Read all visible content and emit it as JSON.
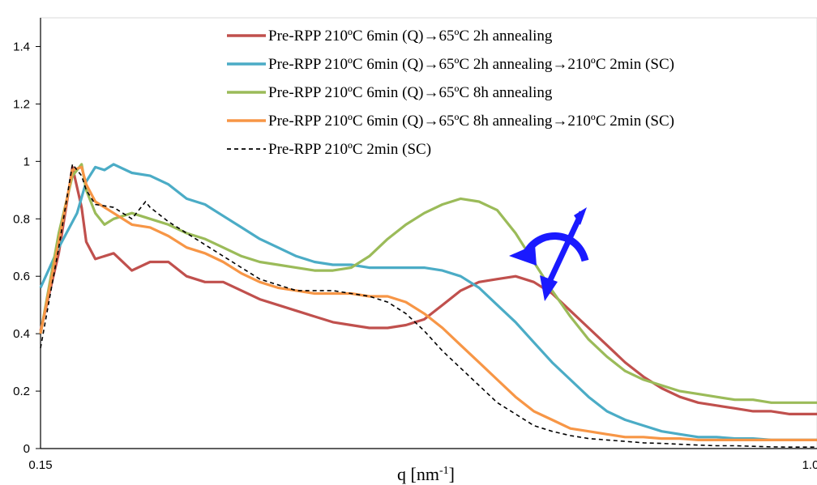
{
  "chart_data": {
    "type": "line",
    "xlabel_main": "q [nm",
    "xlabel_sup": "-1",
    "xlabel_end": "]",
    "xlim": [
      0.15,
      1.0
    ],
    "ylim": [
      0,
      1.5
    ],
    "x_ticks": [
      "0.15",
      "1.0"
    ],
    "y_ticks": [
      {
        "value": 0,
        "label": "0"
      },
      {
        "value": 0.2,
        "label": "0.2"
      },
      {
        "value": 0.4,
        "label": "0.4"
      },
      {
        "value": 0.6,
        "label": "0.6"
      },
      {
        "value": 0.8,
        "label": "0.8"
      },
      {
        "value": 1,
        "label": "1"
      },
      {
        "value": 1.2,
        "label": "1.2"
      },
      {
        "value": 1.4,
        "label": "1.4"
      }
    ],
    "legend_position": "top-center",
    "arrow_color": "#1a1aff",
    "series": [
      {
        "name": "Pre-RPP 210ºC 6min (Q)→65ºC 2h annealing",
        "color": "#c0504d",
        "dash": "",
        "x": [
          0.15,
          0.17,
          0.185,
          0.195,
          0.2,
          0.21,
          0.23,
          0.25,
          0.27,
          0.29,
          0.31,
          0.33,
          0.35,
          0.37,
          0.39,
          0.41,
          0.43,
          0.45,
          0.47,
          0.49,
          0.51,
          0.53,
          0.55,
          0.57,
          0.59,
          0.61,
          0.63,
          0.65,
          0.67,
          0.69,
          0.71,
          0.73,
          0.75,
          0.77,
          0.79,
          0.81,
          0.83,
          0.85,
          0.87,
          0.89,
          0.91,
          0.93,
          0.95,
          0.97,
          1.0
        ],
        "y": [
          0.41,
          0.68,
          0.98,
          0.84,
          0.72,
          0.66,
          0.68,
          0.62,
          0.65,
          0.65,
          0.6,
          0.58,
          0.58,
          0.55,
          0.52,
          0.5,
          0.48,
          0.46,
          0.44,
          0.43,
          0.42,
          0.42,
          0.43,
          0.45,
          0.5,
          0.55,
          0.58,
          0.59,
          0.6,
          0.58,
          0.54,
          0.48,
          0.42,
          0.36,
          0.3,
          0.25,
          0.21,
          0.18,
          0.16,
          0.15,
          0.14,
          0.13,
          0.13,
          0.12,
          0.12
        ]
      },
      {
        "name": "Pre-RPP 210ºC 6min (Q)→65ºC 2h annealing→210ºC  2min (SC)",
        "color": "#4bacc6",
        "dash": "",
        "x": [
          0.15,
          0.17,
          0.19,
          0.2,
          0.21,
          0.22,
          0.23,
          0.25,
          0.27,
          0.29,
          0.31,
          0.33,
          0.35,
          0.37,
          0.39,
          0.41,
          0.43,
          0.45,
          0.47,
          0.49,
          0.51,
          0.53,
          0.55,
          0.57,
          0.59,
          0.61,
          0.63,
          0.65,
          0.67,
          0.69,
          0.71,
          0.73,
          0.75,
          0.77,
          0.79,
          0.81,
          0.83,
          0.85,
          0.87,
          0.89,
          0.91,
          0.93,
          0.95,
          0.97,
          1.0
        ],
        "y": [
          0.56,
          0.7,
          0.82,
          0.93,
          0.98,
          0.97,
          0.99,
          0.96,
          0.95,
          0.92,
          0.87,
          0.85,
          0.81,
          0.77,
          0.73,
          0.7,
          0.67,
          0.65,
          0.64,
          0.64,
          0.63,
          0.63,
          0.63,
          0.63,
          0.62,
          0.6,
          0.56,
          0.5,
          0.44,
          0.37,
          0.3,
          0.24,
          0.18,
          0.13,
          0.1,
          0.08,
          0.06,
          0.05,
          0.04,
          0.04,
          0.035,
          0.035,
          0.03,
          0.03,
          0.03
        ]
      },
      {
        "name": "Pre-RPP 210ºC 6min (Q)→65ºC 8h annealing",
        "color": "#9bbb59",
        "dash": "",
        "x": [
          0.15,
          0.17,
          0.185,
          0.195,
          0.2,
          0.21,
          0.22,
          0.23,
          0.25,
          0.27,
          0.29,
          0.31,
          0.33,
          0.35,
          0.37,
          0.39,
          0.41,
          0.43,
          0.45,
          0.47,
          0.49,
          0.51,
          0.53,
          0.55,
          0.57,
          0.59,
          0.61,
          0.63,
          0.65,
          0.67,
          0.69,
          0.71,
          0.73,
          0.75,
          0.77,
          0.79,
          0.81,
          0.83,
          0.85,
          0.87,
          0.89,
          0.91,
          0.93,
          0.95,
          0.97,
          1.0
        ],
        "y": [
          0.4,
          0.75,
          0.95,
          0.99,
          0.9,
          0.82,
          0.78,
          0.8,
          0.82,
          0.8,
          0.78,
          0.75,
          0.73,
          0.7,
          0.67,
          0.65,
          0.64,
          0.63,
          0.62,
          0.62,
          0.63,
          0.67,
          0.73,
          0.78,
          0.82,
          0.85,
          0.87,
          0.86,
          0.83,
          0.75,
          0.65,
          0.55,
          0.46,
          0.38,
          0.32,
          0.27,
          0.24,
          0.22,
          0.2,
          0.19,
          0.18,
          0.17,
          0.17,
          0.16,
          0.16,
          0.16
        ]
      },
      {
        "name": "Pre-RPP 210ºC 6min (Q)→65ºC 8h annealing→210ºC  2min (SC)",
        "color": "#f79646",
        "dash": "",
        "x": [
          0.15,
          0.17,
          0.185,
          0.195,
          0.2,
          0.21,
          0.23,
          0.25,
          0.27,
          0.29,
          0.31,
          0.33,
          0.35,
          0.37,
          0.39,
          0.41,
          0.43,
          0.45,
          0.47,
          0.49,
          0.51,
          0.53,
          0.55,
          0.57,
          0.59,
          0.61,
          0.63,
          0.65,
          0.67,
          0.69,
          0.71,
          0.73,
          0.75,
          0.77,
          0.79,
          0.81,
          0.83,
          0.85,
          0.87,
          0.89,
          0.91,
          0.93,
          0.95,
          0.97,
          1.0
        ],
        "y": [
          0.4,
          0.72,
          0.97,
          0.98,
          0.92,
          0.86,
          0.82,
          0.78,
          0.77,
          0.74,
          0.7,
          0.68,
          0.65,
          0.61,
          0.58,
          0.56,
          0.55,
          0.54,
          0.54,
          0.54,
          0.53,
          0.53,
          0.51,
          0.47,
          0.42,
          0.36,
          0.3,
          0.24,
          0.18,
          0.13,
          0.1,
          0.07,
          0.06,
          0.05,
          0.04,
          0.04,
          0.035,
          0.035,
          0.03,
          0.03,
          0.03,
          0.03,
          0.03,
          0.03,
          0.03
        ]
      },
      {
        "name": "Pre-RPP 210ºC 2min (SC)",
        "color": "#000000",
        "dash": "5,4",
        "x": [
          0.15,
          0.17,
          0.185,
          0.195,
          0.2,
          0.21,
          0.23,
          0.25,
          0.265,
          0.27,
          0.29,
          0.31,
          0.33,
          0.35,
          0.37,
          0.39,
          0.41,
          0.43,
          0.45,
          0.47,
          0.49,
          0.51,
          0.53,
          0.55,
          0.57,
          0.59,
          0.61,
          0.63,
          0.65,
          0.67,
          0.69,
          0.71,
          0.73,
          0.75,
          0.77,
          0.79,
          0.81,
          0.83,
          0.85,
          0.87,
          0.89,
          0.91,
          0.93,
          0.95,
          0.97,
          1.0
        ],
        "y": [
          0.35,
          0.7,
          0.99,
          0.95,
          0.9,
          0.85,
          0.84,
          0.8,
          0.86,
          0.84,
          0.79,
          0.75,
          0.71,
          0.67,
          0.63,
          0.59,
          0.57,
          0.55,
          0.55,
          0.55,
          0.54,
          0.53,
          0.51,
          0.47,
          0.41,
          0.34,
          0.28,
          0.22,
          0.16,
          0.12,
          0.08,
          0.06,
          0.045,
          0.035,
          0.03,
          0.025,
          0.02,
          0.018,
          0.015,
          0.012,
          0.01,
          0.01,
          0.008,
          0.006,
          0.005,
          0.005
        ]
      }
    ]
  }
}
